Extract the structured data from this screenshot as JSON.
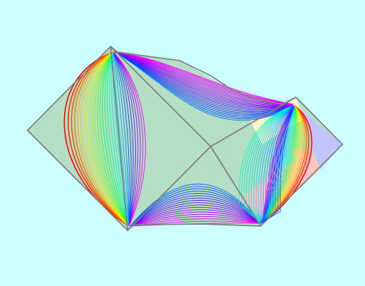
{
  "colors": {
    "background": "#ccffff",
    "region_main": "#b4dfc4",
    "region_pink": "#ffc4c4",
    "region_blue": "#c0c4ff",
    "region_yellow": "#fff4c8",
    "region_lightblue": "#a4dcee",
    "outline": "#808080",
    "curve_palette": [
      "#ff0000",
      "#ff8800",
      "#ffee00",
      "#88ff00",
      "#00ff44",
      "#00ffbb",
      "#00ccff",
      "#0044ff",
      "#8800ff",
      "#ff00ff"
    ]
  },
  "figure": {
    "type": "fan-curves-in-tiled-squares",
    "curve_counts": {
      "left_fan": 30,
      "top_band": 22,
      "bottom_band": 18,
      "right_fan": 22,
      "upper_right_fan": 18
    }
  }
}
